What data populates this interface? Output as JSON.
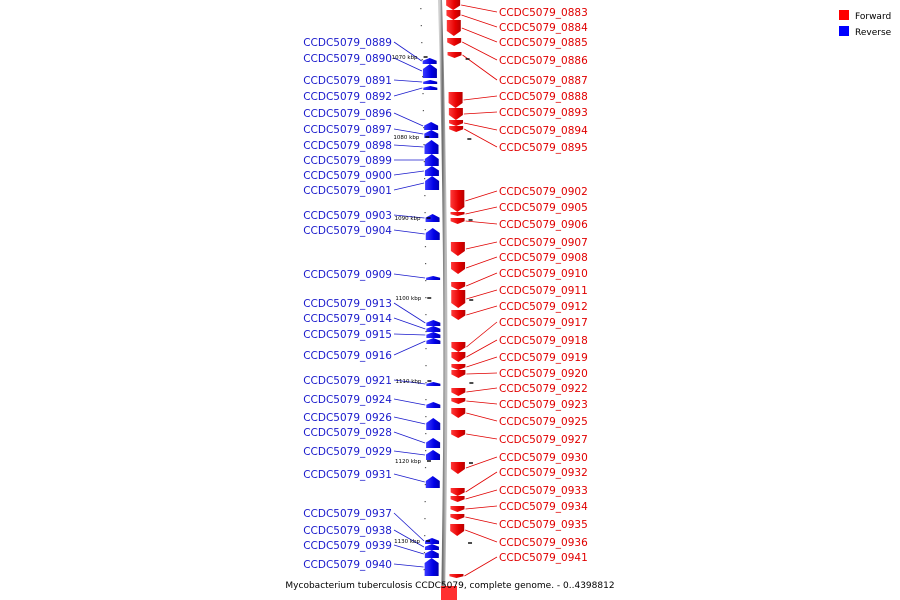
{
  "caption": "Mycobacterium tuberculosis CCDC5079, complete genome. - 0..4398812",
  "legend": [
    {
      "label": "Forward",
      "color": "#ff0000"
    },
    {
      "label": "Reverse",
      "color": "#0000ff"
    }
  ],
  "ticks": [
    "1070 kbp",
    "1080 kbp",
    "1090 kbp",
    "1100 kbp",
    "1110 kbp",
    "1120 kbp",
    "1130 kbp"
  ],
  "forward_genes": [
    "CCDC5079_0883",
    "CCDC5079_0884",
    "CCDC5079_0885",
    "CCDC5079_0886",
    "CCDC5079_0887",
    "CCDC5079_0888",
    "CCDC5079_0893",
    "CCDC5079_0894",
    "CCDC5079_0895",
    "CCDC5079_0902",
    "CCDC5079_0905",
    "CCDC5079_0906",
    "CCDC5079_0907",
    "CCDC5079_0908",
    "CCDC5079_0910",
    "CCDC5079_0911",
    "CCDC5079_0912",
    "CCDC5079_0917",
    "CCDC5079_0918",
    "CCDC5079_0919",
    "CCDC5079_0920",
    "CCDC5079_0922",
    "CCDC5079_0923",
    "CCDC5079_0925",
    "CCDC5079_0927",
    "CCDC5079_0930",
    "CCDC5079_0932",
    "CCDC5079_0933",
    "CCDC5079_0934",
    "CCDC5079_0935",
    "CCDC5079_0936",
    "CCDC5079_0941"
  ],
  "reverse_genes": [
    "CCDC5079_0889",
    "CCDC5079_0890",
    "CCDC5079_0891",
    "CCDC5079_0892",
    "CCDC5079_0896",
    "CCDC5079_0897",
    "CCDC5079_0898",
    "CCDC5079_0899",
    "CCDC5079_0900",
    "CCDC5079_0901",
    "CCDC5079_0903",
    "CCDC5079_0904",
    "CCDC5079_0909",
    "CCDC5079_0913",
    "CCDC5079_0914",
    "CCDC5079_0915",
    "CCDC5079_0916",
    "CCDC5079_0921",
    "CCDC5079_0924",
    "CCDC5079_0926",
    "CCDC5079_0928",
    "CCDC5079_0929",
    "CCDC5079_0931",
    "CCDC5079_0937",
    "CCDC5079_0938",
    "CCDC5079_0939",
    "CCDC5079_0940"
  ]
}
